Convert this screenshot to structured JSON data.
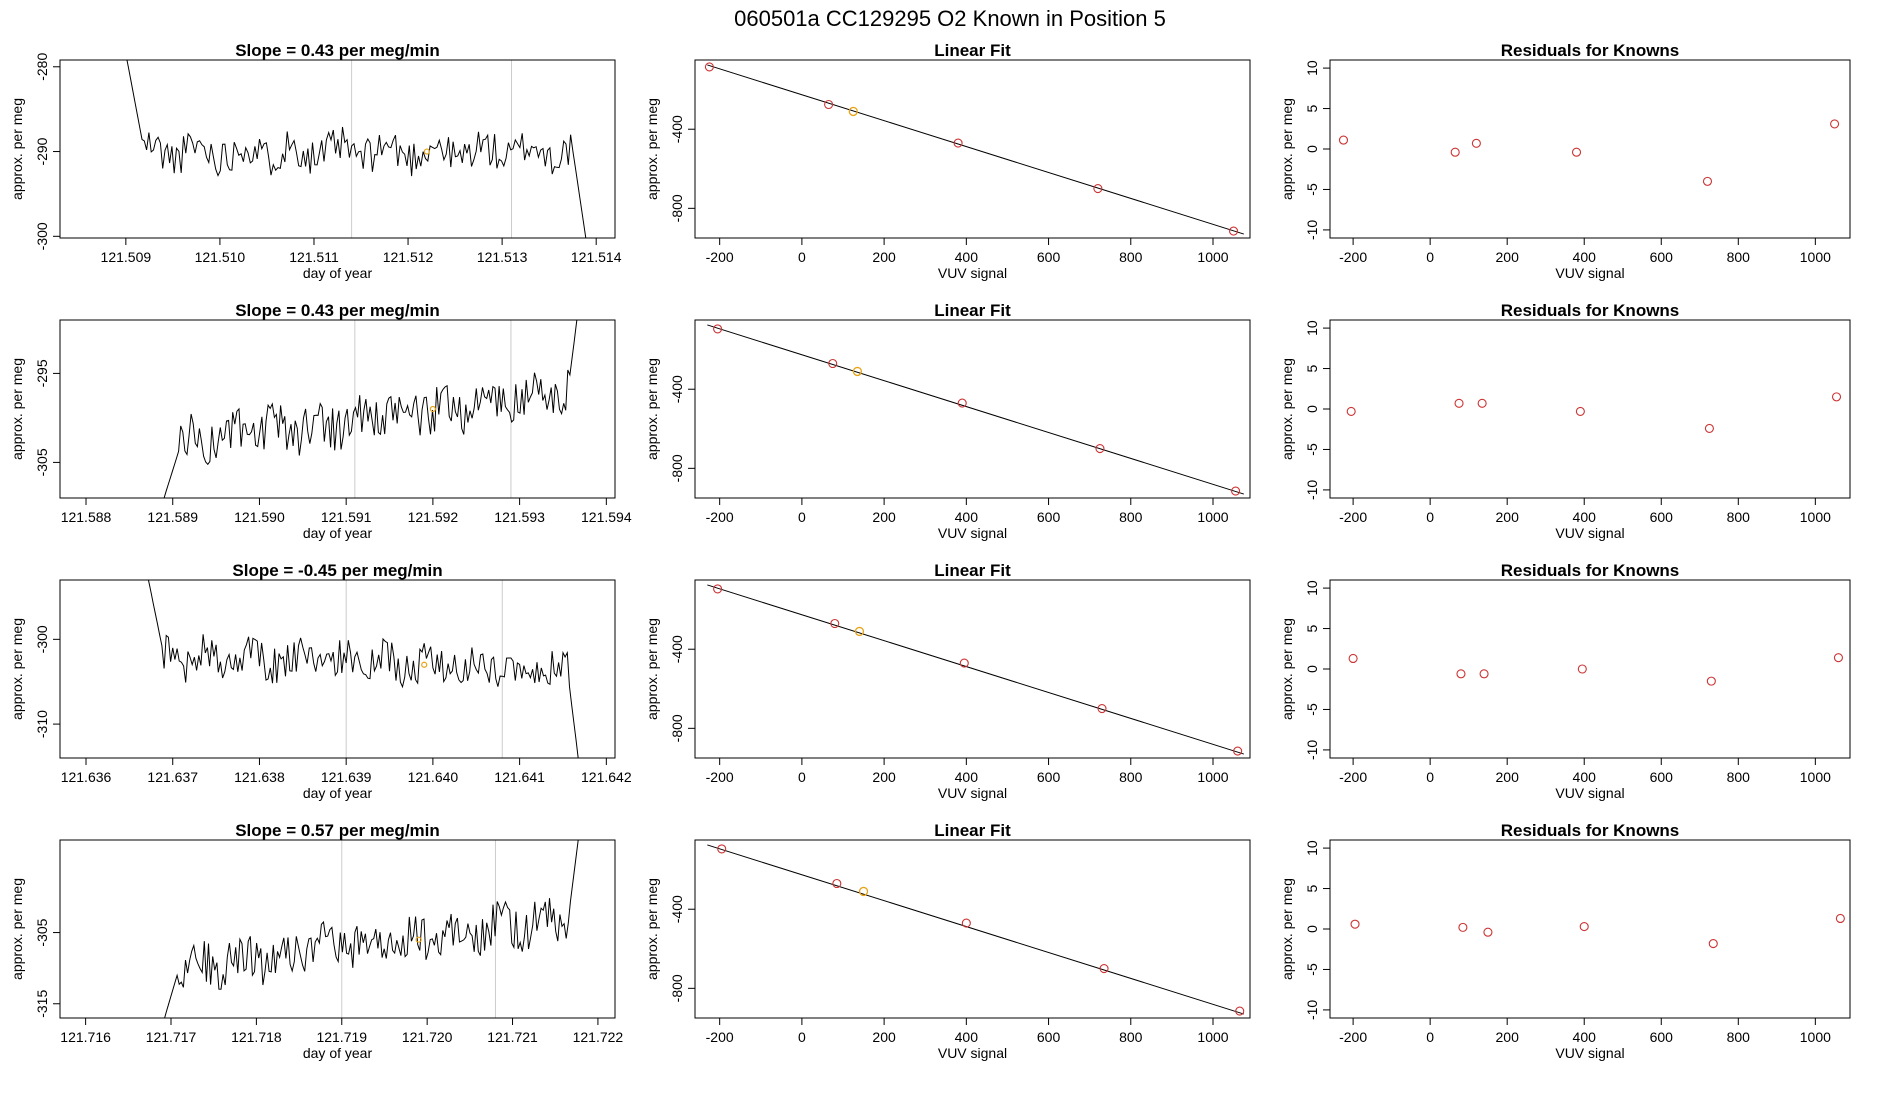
{
  "page_title": "060501a      CC129295   O2 Known in Position  5",
  "colors": {
    "line": "#000000",
    "point": "#cc3333",
    "highlight": "#e8a317",
    "vline": "#cccccc",
    "frame": "#000000"
  },
  "chart_data": [
    {
      "type": "line",
      "title": "Slope =  0.43  per meg/min",
      "xlabel": "day of year",
      "ylabel": "approx. per meg",
      "xlim": [
        121.5083,
        121.5142
      ],
      "ylim": [
        -300.2,
        -279.2
      ],
      "xticks": [
        "121.509",
        "121.510",
        "121.511",
        "121.512",
        "121.513",
        "121.514"
      ],
      "xtick_values": [
        121.509,
        121.51,
        121.511,
        121.512,
        121.513,
        121.514
      ],
      "yticks": [
        "-300",
        "-290",
        "-280"
      ],
      "ytick_values": [
        -300,
        -290,
        -280
      ],
      "vlines": [
        121.5114,
        121.5131
      ],
      "marker": {
        "x": 121.5122,
        "y": -290
      },
      "series": {
        "x_start": 121.509,
        "x_end": 121.5139,
        "start_y": -278.5,
        "settle_y": -290,
        "end_y": -301,
        "amp": 2.2,
        "drift": 0,
        "rise_from": 121.5091,
        "seed": 11,
        "mode": "flat"
      }
    },
    {
      "type": "scatter",
      "title": "Linear Fit",
      "xlabel": "VUV signal",
      "ylabel": "approx. per meg",
      "xlim": [
        -260,
        1090
      ],
      "ylim": [
        -950,
        -50
      ],
      "xticks": [
        "-200",
        "0",
        "200",
        "400",
        "600",
        "800",
        "1000"
      ],
      "xtick_values": [
        -200,
        0,
        200,
        400,
        600,
        800,
        1000
      ],
      "yticks": [
        "-400",
        "-800"
      ],
      "ytick_values": [
        -400,
        -800
      ],
      "points": [
        [
          -225,
          -85
        ],
        [
          65,
          -275
        ],
        [
          380,
          -470
        ],
        [
          720,
          -700
        ],
        [
          1050,
          -915
        ]
      ],
      "highlight": [
        [
          125,
          -310
        ]
      ],
      "fit_line": [
        [
          -230,
          -75
        ],
        [
          1075,
          -930
        ]
      ]
    },
    {
      "type": "scatter",
      "title": "Residuals for Knowns",
      "xlabel": "VUV signal",
      "ylabel": "approx. per meg",
      "xlim": [
        -260,
        1090
      ],
      "ylim": [
        -11,
        11
      ],
      "xticks": [
        "-200",
        "0",
        "200",
        "400",
        "600",
        "800",
        "1000"
      ],
      "xtick_values": [
        -200,
        0,
        200,
        400,
        600,
        800,
        1000
      ],
      "yticks": [
        "-10",
        "-5",
        "0",
        "5",
        "10"
      ],
      "ytick_values": [
        -10,
        -5,
        0,
        5,
        10
      ],
      "points": [
        [
          -225,
          1.1
        ],
        [
          65,
          -0.4
        ],
        [
          120,
          0.7
        ],
        [
          380,
          -0.4
        ],
        [
          720,
          -4
        ],
        [
          1050,
          3.1
        ]
      ]
    },
    {
      "type": "line",
      "title": "Slope =  0.43  per meg/min",
      "xlabel": "day of year",
      "ylabel": "approx. per meg",
      "xlim": [
        121.5877,
        121.5941
      ],
      "ylim": [
        -309,
        -289
      ],
      "xticks": [
        "121.588",
        "121.589",
        "121.590",
        "121.591",
        "121.592",
        "121.593",
        "121.594"
      ],
      "xtick_values": [
        121.588,
        121.589,
        121.59,
        121.591,
        121.592,
        121.593,
        121.594
      ],
      "yticks": [
        "-305",
        "-295"
      ],
      "ytick_values": [
        -305,
        -295
      ],
      "vlines": [
        121.5911,
        121.5929
      ],
      "marker": {
        "x": 121.592,
        "y": -299
      },
      "series": {
        "x_start": 121.5889,
        "x_end": 121.5937,
        "start_y": -309,
        "settle_y": -303,
        "end_y": -286,
        "amp": 2.5,
        "drift": 6,
        "rise_from": 121.589,
        "seed": 23,
        "mode": "rising"
      }
    },
    {
      "type": "scatter",
      "title": "Linear Fit",
      "xlabel": "VUV signal",
      "ylabel": "approx. per meg",
      "xlim": [
        -260,
        1090
      ],
      "ylim": [
        -950,
        -50
      ],
      "xticks": [
        "-200",
        "0",
        "200",
        "400",
        "600",
        "800",
        "1000"
      ],
      "xtick_values": [
        -200,
        0,
        200,
        400,
        600,
        800,
        1000
      ],
      "yticks": [
        "-400",
        "-800"
      ],
      "ytick_values": [
        -400,
        -800
      ],
      "points": [
        [
          -205,
          -95
        ],
        [
          75,
          -270
        ],
        [
          390,
          -470
        ],
        [
          725,
          -700
        ],
        [
          1055,
          -915
        ]
      ],
      "highlight": [
        [
          135,
          -310
        ]
      ],
      "fit_line": [
        [
          -230,
          -75
        ],
        [
          1075,
          -930
        ]
      ]
    },
    {
      "type": "scatter",
      "title": "Residuals for Knowns",
      "xlabel": "VUV signal",
      "ylabel": "approx. per meg",
      "xlim": [
        -260,
        1090
      ],
      "ylim": [
        -11,
        11
      ],
      "xticks": [
        "-200",
        "0",
        "200",
        "400",
        "600",
        "800",
        "1000"
      ],
      "xtick_values": [
        -200,
        0,
        200,
        400,
        600,
        800,
        1000
      ],
      "yticks": [
        "-10",
        "-5",
        "0",
        "5",
        "10"
      ],
      "ytick_values": [
        -10,
        -5,
        0,
        5,
        10
      ],
      "points": [
        [
          -205,
          -0.3
        ],
        [
          75,
          0.7
        ],
        [
          135,
          0.7
        ],
        [
          390,
          -0.3
        ],
        [
          725,
          -2.4
        ],
        [
          1055,
          1.5
        ]
      ]
    },
    {
      "type": "line",
      "title": "Slope =  -0.45  per meg/min",
      "xlabel": "day of year",
      "ylabel": "approx. per meg",
      "xlim": [
        121.6357,
        121.6421
      ],
      "ylim": [
        -314,
        -293
      ],
      "xticks": [
        "121.636",
        "121.637",
        "121.638",
        "121.639",
        "121.640",
        "121.641",
        "121.642"
      ],
      "xtick_values": [
        121.636,
        121.637,
        121.638,
        121.639,
        121.64,
        121.641,
        121.642
      ],
      "yticks": [
        "-310",
        "-300"
      ],
      "ytick_values": [
        -310,
        -300
      ],
      "vlines": [
        121.639,
        121.6408
      ],
      "marker": {
        "x": 121.6399,
        "y": -303
      },
      "series": {
        "x_start": 121.6367,
        "x_end": 121.6417,
        "start_y": -292,
        "settle_y": -302,
        "end_y": -316,
        "amp": 2.2,
        "drift": -1.5,
        "rise_from": 121.6368,
        "seed": 37,
        "mode": "flat"
      }
    },
    {
      "type": "scatter",
      "title": "Linear Fit",
      "xlabel": "VUV signal",
      "ylabel": "approx. per meg",
      "xlim": [
        -260,
        1090
      ],
      "ylim": [
        -950,
        -50
      ],
      "xticks": [
        "-200",
        "0",
        "200",
        "400",
        "600",
        "800",
        "1000"
      ],
      "xtick_values": [
        -200,
        0,
        200,
        400,
        600,
        800,
        1000
      ],
      "yticks": [
        "-400",
        "-800"
      ],
      "ytick_values": [
        -400,
        -800
      ],
      "points": [
        [
          -205,
          -95
        ],
        [
          80,
          -270
        ],
        [
          395,
          -470
        ],
        [
          730,
          -700
        ],
        [
          1060,
          -915
        ]
      ],
      "highlight": [
        [
          140,
          -310
        ]
      ],
      "fit_line": [
        [
          -230,
          -75
        ],
        [
          1075,
          -930
        ]
      ]
    },
    {
      "type": "scatter",
      "title": "Residuals for Knowns",
      "xlabel": "VUV signal",
      "ylabel": "approx. per meg",
      "xlim": [
        -260,
        1090
      ],
      "ylim": [
        -11,
        11
      ],
      "xticks": [
        "-200",
        "0",
        "200",
        "400",
        "600",
        "800",
        "1000"
      ],
      "xtick_values": [
        -200,
        0,
        200,
        400,
        600,
        800,
        1000
      ],
      "yticks": [
        "-10",
        "-5",
        "0",
        "5",
        "10"
      ],
      "ytick_values": [
        -10,
        -5,
        0,
        5,
        10
      ],
      "points": [
        [
          -200,
          1.3
        ],
        [
          80,
          -0.6
        ],
        [
          140,
          -0.6
        ],
        [
          395,
          0
        ],
        [
          730,
          -1.5
        ],
        [
          1060,
          1.4
        ]
      ]
    },
    {
      "type": "line",
      "title": "Slope =  0.57  per meg/min",
      "xlabel": "day of year",
      "ylabel": "approx. per meg",
      "xlim": [
        121.7157,
        121.7222
      ],
      "ylim": [
        -317,
        -292
      ],
      "xticks": [
        "121.716",
        "121.717",
        "121.718",
        "121.719",
        "121.720",
        "121.721",
        "121.722"
      ],
      "xtick_values": [
        121.716,
        121.717,
        121.718,
        121.719,
        121.72,
        121.721,
        121.722
      ],
      "yticks": [
        "-315",
        "-305"
      ],
      "ytick_values": [
        -315,
        -305
      ],
      "vlines": [
        121.719,
        121.7208
      ],
      "marker": {
        "x": 121.7199,
        "y": -306
      },
      "series": {
        "x_start": 121.7169,
        "x_end": 121.7218,
        "start_y": -318,
        "settle_y": -310,
        "end_y": -289,
        "amp": 3,
        "drift": 7,
        "rise_from": 121.717,
        "seed": 53,
        "mode": "rising"
      }
    },
    {
      "type": "scatter",
      "title": "Linear Fit",
      "xlabel": "VUV signal",
      "ylabel": "approx. per meg",
      "xlim": [
        -260,
        1090
      ],
      "ylim": [
        -950,
        -50
      ],
      "xticks": [
        "-200",
        "0",
        "200",
        "400",
        "600",
        "800",
        "1000"
      ],
      "xtick_values": [
        -200,
        0,
        200,
        400,
        600,
        800,
        1000
      ],
      "yticks": [
        "-400",
        "-800"
      ],
      "ytick_values": [
        -400,
        -800
      ],
      "points": [
        [
          -195,
          -95
        ],
        [
          85,
          -270
        ],
        [
          400,
          -470
        ],
        [
          735,
          -700
        ],
        [
          1065,
          -915
        ]
      ],
      "highlight": [
        [
          150,
          -310
        ]
      ],
      "fit_line": [
        [
          -230,
          -75
        ],
        [
          1075,
          -930
        ]
      ]
    },
    {
      "type": "scatter",
      "title": "Residuals for Knowns",
      "xlabel": "VUV signal",
      "ylabel": "approx. per meg",
      "xlim": [
        -260,
        1090
      ],
      "ylim": [
        -11,
        11
      ],
      "xticks": [
        "-200",
        "0",
        "200",
        "400",
        "600",
        "800",
        "1000"
      ],
      "xtick_values": [
        -200,
        0,
        200,
        400,
        600,
        800,
        1000
      ],
      "yticks": [
        "-10",
        "-5",
        "0",
        "5",
        "10"
      ],
      "ytick_values": [
        -10,
        -5,
        0,
        5,
        10
      ],
      "points": [
        [
          -195,
          0.6
        ],
        [
          85,
          0.2
        ],
        [
          150,
          -0.4
        ],
        [
          400,
          0.3
        ],
        [
          735,
          -1.8
        ],
        [
          1065,
          1.3
        ]
      ]
    }
  ]
}
